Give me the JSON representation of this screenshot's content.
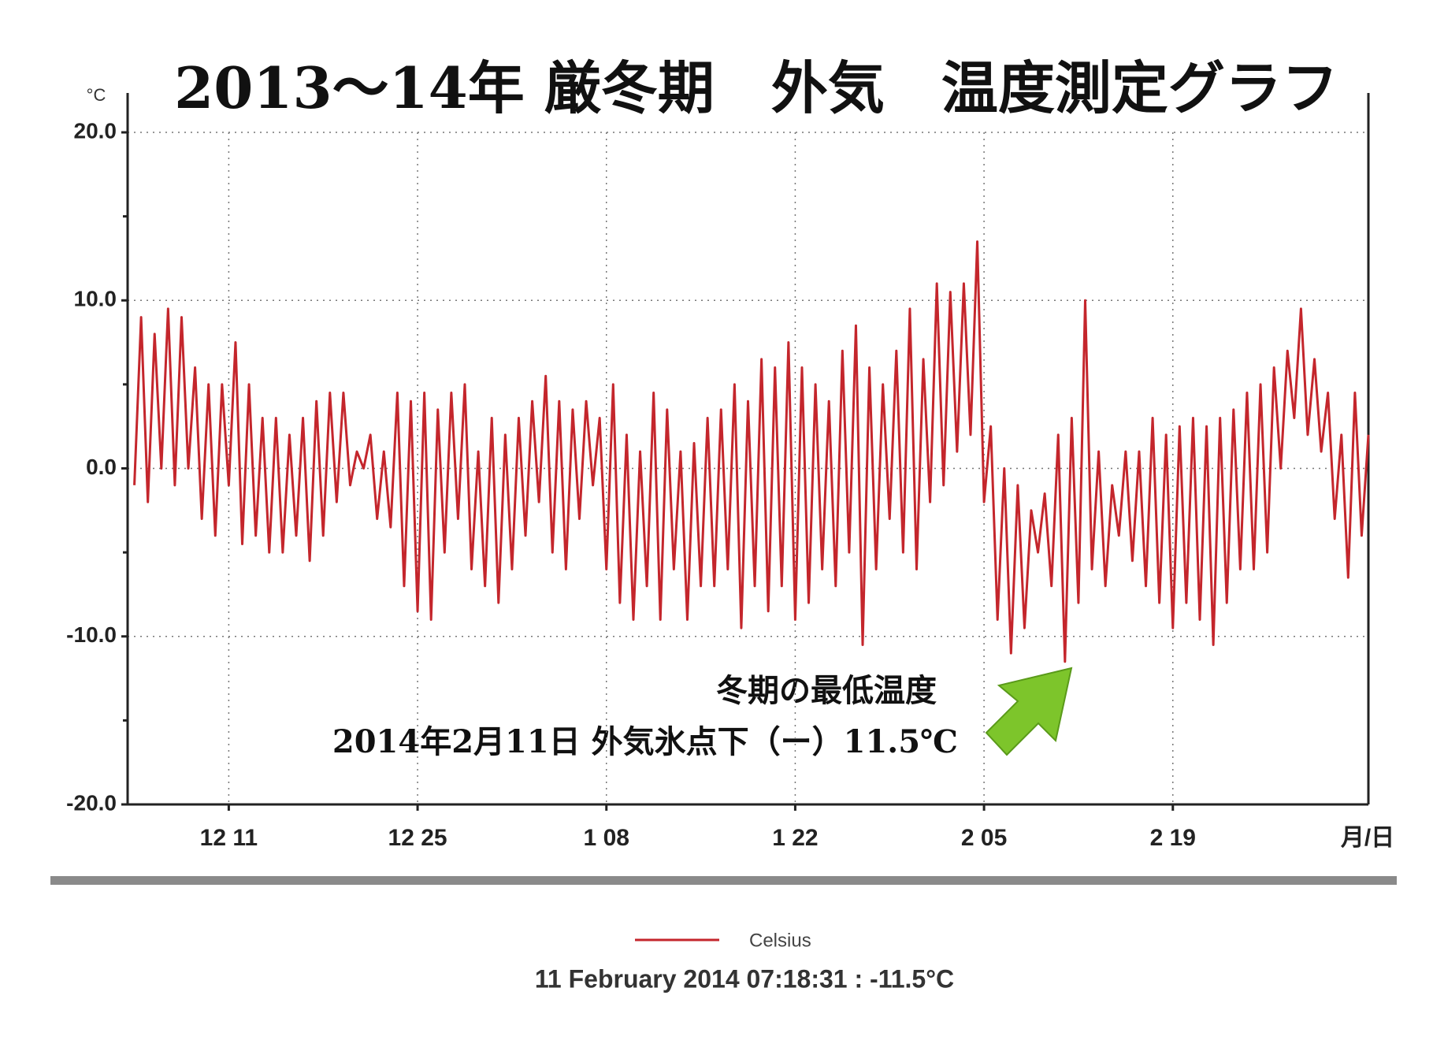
{
  "chart_data": {
    "type": "line",
    "title": "2013～14年 厳冬期　外気　温度測定グラフ",
    "y_label": "°C",
    "x_label": "月/日",
    "annotations": [
      "冬期の最低温度",
      "2014年2月11日 外気氷点下（ー）11.5℃"
    ],
    "readout": "11 February 2014 07:18:31 : -11.5°C",
    "xlim": [
      -7.5,
      84.5
    ],
    "xticks": [
      {
        "value": 0,
        "label": "12 11"
      },
      {
        "value": 14,
        "label": "12 25"
      },
      {
        "value": 28,
        "label": "1 08"
      },
      {
        "value": 42,
        "label": "1 22"
      },
      {
        "value": 56,
        "label": "2 05"
      },
      {
        "value": 70,
        "label": "2 19"
      }
    ],
    "ylim": [
      -20,
      20
    ],
    "yticks": [
      {
        "value": 20,
        "label": "20.0"
      },
      {
        "value": 10,
        "label": "10.0"
      },
      {
        "value": 0,
        "label": "0.0"
      },
      {
        "value": -10,
        "label": "-10.0"
      },
      {
        "value": -20,
        "label": "-20.0"
      }
    ],
    "yminor": [
      15,
      5,
      -5,
      -15
    ],
    "grid": true,
    "x": [
      -7,
      -6.5,
      -6,
      -5.5,
      -5,
      -4.5,
      -4,
      -3.5,
      -3,
      -2.5,
      -2,
      -1.5,
      -1,
      -0.5,
      0,
      0.5,
      1,
      1.5,
      2,
      2.5,
      3,
      3.5,
      4,
      4.5,
      5,
      5.5,
      6,
      6.5,
      7,
      7.5,
      8,
      8.5,
      9,
      9.5,
      10,
      10.5,
      11,
      11.5,
      12,
      12.5,
      13,
      13.5,
      14,
      14.5,
      15,
      15.5,
      16,
      16.5,
      17,
      17.5,
      18,
      18.5,
      19,
      19.5,
      20,
      20.5,
      21,
      21.5,
      22,
      22.5,
      23,
      23.5,
      24,
      24.5,
      25,
      25.5,
      26,
      26.5,
      27,
      27.5,
      28,
      28.5,
      29,
      29.5,
      30,
      30.5,
      31,
      31.5,
      32,
      32.5,
      33,
      33.5,
      34,
      34.5,
      35,
      35.5,
      36,
      36.5,
      37,
      37.5,
      38,
      38.5,
      39,
      39.5,
      40,
      40.5,
      41,
      41.5,
      42,
      42.5,
      43,
      43.5,
      44,
      44.5,
      45,
      45.5,
      46,
      46.5,
      47,
      47.5,
      48,
      48.5,
      49,
      49.5,
      50,
      50.5,
      51,
      51.5,
      52,
      52.5,
      53,
      53.5,
      54,
      54.5,
      55,
      55.5,
      56,
      56.5,
      57,
      57.5,
      58,
      58.5,
      59,
      59.5,
      60,
      60.5,
      61,
      61.5,
      62,
      62.5,
      63,
      63.5,
      64,
      64.5,
      65,
      65.5,
      66,
      66.5,
      67,
      67.5,
      68,
      68.5,
      69,
      69.5,
      70,
      70.5,
      71,
      71.5,
      72,
      72.5,
      73,
      73.5,
      74,
      74.5,
      75,
      75.5,
      76,
      76.5,
      77,
      77.5,
      78,
      78.5,
      79,
      79.5,
      80,
      80.5,
      81,
      81.5,
      82,
      82.5,
      83,
      83.5,
      84,
      84.5
    ],
    "series": [
      {
        "name": "Celsius",
        "color": "#c4262c",
        "values": [
          -1,
          9,
          -2,
          8,
          0,
          9.5,
          -1,
          9,
          0,
          6,
          -3,
          5,
          -4,
          5,
          -1,
          7.5,
          -4.5,
          5,
          -4,
          3,
          -5,
          3,
          -5,
          2,
          -4,
          3,
          -5.5,
          4,
          -4,
          4.5,
          -2,
          4.5,
          -1,
          1,
          0,
          2,
          -3,
          1,
          -3.5,
          4.5,
          -7,
          4,
          -8.5,
          4.5,
          -9,
          3.5,
          -5,
          4.5,
          -3,
          5,
          -6,
          1,
          -7,
          3,
          -8,
          2,
          -6,
          3,
          -4,
          4,
          -2,
          5.5,
          -5,
          4,
          -6,
          3.5,
          -3,
          4,
          -1,
          3,
          -6,
          5,
          -8,
          2,
          -9,
          1,
          -7,
          4.5,
          -9,
          3.5,
          -6,
          1,
          -9,
          1.5,
          -7,
          3,
          -7,
          3.5,
          -6,
          5,
          -9.5,
          4,
          -7,
          6.5,
          -8.5,
          6,
          -7,
          7.5,
          -9,
          6,
          -8,
          5,
          -6,
          4,
          -7,
          7,
          -5,
          8.5,
          -10.5,
          6,
          -6,
          5,
          -3,
          7,
          -5,
          9.5,
          -6,
          6.5,
          -2,
          11,
          -1,
          10.5,
          1,
          11,
          2,
          13.5,
          -2,
          2.5,
          -9,
          0,
          -11,
          -1,
          -9.5,
          -2.5,
          -5,
          -1.5,
          -7,
          2,
          -11.5,
          3,
          -8,
          10,
          -6,
          1,
          -7,
          -1,
          -4,
          1,
          -5.5,
          1,
          -7,
          3,
          -8,
          2,
          -9.5,
          2.5,
          -8,
          3,
          -9,
          2.5,
          -10.5,
          3,
          -8,
          3.5,
          -6,
          4.5,
          -6,
          5,
          -5,
          6,
          0,
          7,
          3,
          9.5,
          2,
          6.5,
          1,
          4.5,
          -3,
          2,
          -6.5,
          4.5,
          -4,
          2
        ]
      }
    ]
  }
}
